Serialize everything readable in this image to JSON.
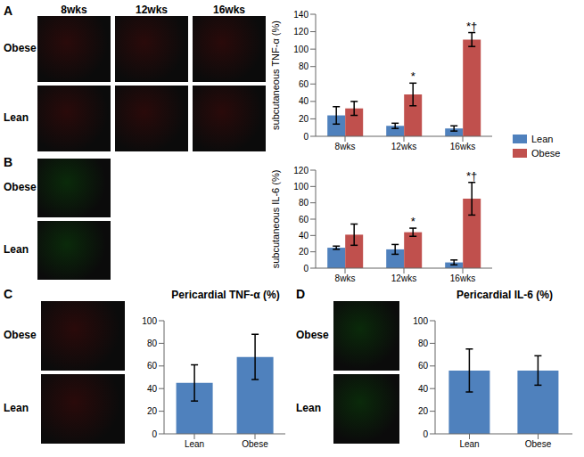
{
  "chart_data": [
    {
      "type": "bar",
      "panel": "A",
      "image_rows": [
        "Obese",
        "Lean"
      ],
      "image_columns": [
        "8wks",
        "12wks",
        "16wks"
      ],
      "y_label": "subcutaneous TNF-α (%)",
      "categories": [
        "8wks",
        "12wks",
        "16wks"
      ],
      "series": [
        {
          "name": "Lean",
          "color": "#4f81bd",
          "values": [
            24,
            12,
            9
          ],
          "errors": [
            10,
            3,
            3
          ]
        },
        {
          "name": "Obese",
          "color": "#c0504d",
          "values": [
            32,
            48,
            111
          ],
          "errors": [
            8,
            13,
            8
          ]
        }
      ],
      "annotations": [
        {
          "category": "12wks",
          "series": "Obese",
          "text": "*"
        },
        {
          "category": "16wks",
          "series": "Obese",
          "text": "*†"
        }
      ],
      "ylim": [
        0,
        140
      ],
      "yticks": [
        0,
        20,
        40,
        60,
        80,
        100,
        120,
        140
      ],
      "grid": false,
      "legend": "right"
    },
    {
      "type": "bar",
      "panel": "B",
      "image_rows": [
        "Obese",
        "Lean"
      ],
      "y_label": "subcutaneous IL-6 (%)",
      "categories": [
        "8wks",
        "12wks",
        "16wks"
      ],
      "series": [
        {
          "name": "Lean",
          "color": "#4f81bd",
          "values": [
            25,
            23,
            7
          ],
          "errors": [
            2,
            6,
            3
          ]
        },
        {
          "name": "Obese",
          "color": "#c0504d",
          "values": [
            41,
            44,
            85
          ],
          "errors": [
            13,
            5,
            20
          ]
        }
      ],
      "annotations": [
        {
          "category": "12wks",
          "series": "Obese",
          "text": "*"
        },
        {
          "category": "16wks",
          "series": "Obese",
          "text": "*†"
        }
      ],
      "ylim": [
        0,
        120
      ],
      "yticks": [
        0,
        20,
        40,
        60,
        80,
        100,
        120
      ],
      "grid": false
    },
    {
      "type": "bar",
      "panel": "C",
      "image_rows": [
        "Obese",
        "Lean"
      ],
      "title": "Pericardial TNF-α (%)",
      "categories": [
        "Lean",
        "Obese"
      ],
      "values": [
        45,
        68
      ],
      "errors": [
        16,
        20
      ],
      "color": "#4f81bd",
      "ylim": [
        0,
        100
      ],
      "yticks": [
        0,
        20,
        40,
        60,
        80,
        100
      ],
      "grid": false
    },
    {
      "type": "bar",
      "panel": "D",
      "image_rows": [
        "Obese",
        "Lean"
      ],
      "title": "Pericardial IL-6 (%)",
      "categories": [
        "Lean",
        "Obese"
      ],
      "values": [
        56,
        56
      ],
      "errors": [
        19,
        13
      ],
      "color": "#4f81bd",
      "ylim": [
        0,
        100
      ],
      "yticks": [
        0,
        20,
        40,
        60,
        80,
        100
      ],
      "grid": false
    }
  ]
}
